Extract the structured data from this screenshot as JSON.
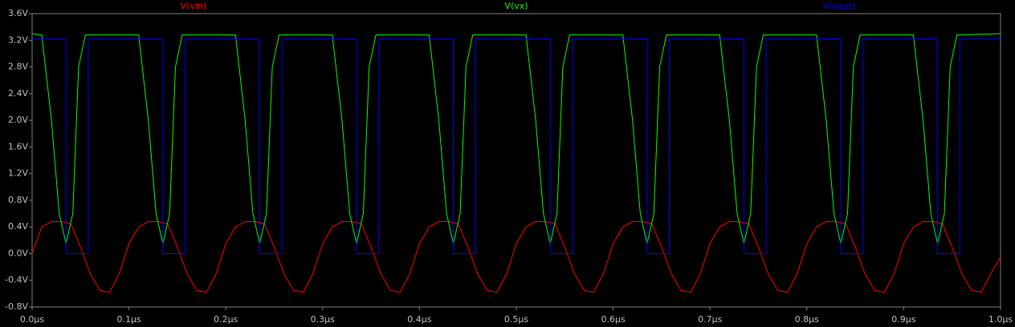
{
  "chart_data": {
    "type": "line",
    "xlim": [
      0,
      1
    ],
    "xticks": [
      {
        "value": 0,
        "label": "0.0µs"
      },
      {
        "value": 0.1,
        "label": "0.1µs"
      },
      {
        "value": 0.2,
        "label": "0.2µs"
      },
      {
        "value": 0.3,
        "label": "0.3µs"
      },
      {
        "value": 0.4,
        "label": "0.4µs"
      },
      {
        "value": 0.5,
        "label": "0.5µs"
      },
      {
        "value": 0.6,
        "label": "0.6µs"
      },
      {
        "value": 0.7,
        "label": "0.7µs"
      },
      {
        "value": 0.8,
        "label": "0.8µs"
      },
      {
        "value": 0.9,
        "label": "0.9µs"
      },
      {
        "value": 1,
        "label": "1.0µs"
      }
    ],
    "ylim": [
      -0.8,
      3.6
    ],
    "yticks": [
      {
        "value": 3.6,
        "label": "3.6V"
      },
      {
        "value": 3.2,
        "label": "3.2V"
      },
      {
        "value": 2.8,
        "label": "2.8V"
      },
      {
        "value": 2.4,
        "label": "2.4V"
      },
      {
        "value": 2.0,
        "label": "2.0V"
      },
      {
        "value": 1.6,
        "label": "1.6V"
      },
      {
        "value": 1.2,
        "label": "1.2V"
      },
      {
        "value": 0.8,
        "label": "0.8V"
      },
      {
        "value": 0.4,
        "label": "0.4V"
      },
      {
        "value": 0,
        "label": "0.0V"
      },
      {
        "value": -0.4,
        "label": "-0.4V"
      },
      {
        "value": -0.8,
        "label": "-0.8V"
      }
    ],
    "series": [
      {
        "name": "V(vin)",
        "color": "#ff0000",
        "x": [
          0,
          0.01,
          0.02,
          0.03,
          0.04,
          0.05,
          0.06,
          0.07,
          0.08,
          0.09,
          0.1,
          0.11,
          0.12,
          0.13,
          0.14,
          0.15,
          0.16,
          0.17,
          0.18,
          0.19,
          0.2,
          0.21,
          0.22,
          0.23,
          0.24,
          0.25,
          0.26,
          0.27,
          0.28,
          0.29,
          0.3,
          0.31,
          0.32,
          0.33,
          0.34,
          0.35,
          0.36,
          0.37,
          0.38,
          0.39,
          0.4,
          0.41,
          0.42,
          0.43,
          0.44,
          0.45,
          0.46,
          0.47,
          0.48,
          0.49,
          0.5,
          0.51,
          0.52,
          0.53,
          0.54,
          0.55,
          0.56,
          0.57,
          0.58,
          0.59,
          0.6,
          0.61,
          0.62,
          0.63,
          0.64,
          0.65,
          0.66,
          0.67,
          0.68,
          0.69,
          0.7,
          0.71,
          0.72,
          0.73,
          0.74,
          0.75,
          0.76,
          0.77,
          0.78,
          0.79,
          0.8,
          0.81,
          0.82,
          0.83,
          0.84,
          0.85,
          0.86,
          0.87,
          0.88,
          0.89,
          0.9,
          0.91,
          0.92,
          0.93,
          0.94,
          0.95,
          0.96,
          0.97,
          0.98,
          0.99,
          1.0
        ],
        "values": [
          0,
          0.4,
          0.48,
          0.48,
          0.45,
          0.1,
          -0.3,
          -0.55,
          -0.58,
          -0.3,
          0.15,
          0.4,
          0.48,
          0.48,
          0.45,
          0.1,
          -0.3,
          -0.55,
          -0.58,
          -0.3,
          0.15,
          0.4,
          0.48,
          0.48,
          0.45,
          0.1,
          -0.3,
          -0.55,
          -0.58,
          -0.3,
          0.15,
          0.4,
          0.48,
          0.48,
          0.45,
          0.1,
          -0.3,
          -0.55,
          -0.58,
          -0.3,
          0.15,
          0.4,
          0.48,
          0.48,
          0.45,
          0.1,
          -0.3,
          -0.55,
          -0.58,
          -0.3,
          0.15,
          0.4,
          0.48,
          0.48,
          0.45,
          0.1,
          -0.3,
          -0.55,
          -0.58,
          -0.3,
          0.15,
          0.4,
          0.48,
          0.48,
          0.45,
          0.1,
          -0.3,
          -0.55,
          -0.58,
          -0.3,
          0.15,
          0.4,
          0.48,
          0.48,
          0.45,
          0.1,
          -0.3,
          -0.55,
          -0.58,
          -0.3,
          0.15,
          0.4,
          0.48,
          0.48,
          0.45,
          0.1,
          -0.3,
          -0.55,
          -0.58,
          -0.3,
          0.15,
          0.4,
          0.48,
          0.48,
          0.45,
          0.1,
          -0.3,
          -0.55,
          -0.58,
          -0.3,
          -0.05
        ]
      },
      {
        "name": "V(vx)",
        "color": "#00ff00",
        "x": [
          0,
          0.01,
          0.02,
          0.028,
          0.035,
          0.042,
          0.048,
          0.055,
          0.11,
          0.12,
          0.128,
          0.135,
          0.142,
          0.148,
          0.155,
          0.21,
          0.22,
          0.228,
          0.235,
          0.242,
          0.248,
          0.255,
          0.31,
          0.32,
          0.328,
          0.335,
          0.342,
          0.348,
          0.355,
          0.41,
          0.42,
          0.428,
          0.435,
          0.442,
          0.448,
          0.455,
          0.51,
          0.52,
          0.528,
          0.535,
          0.542,
          0.548,
          0.555,
          0.61,
          0.62,
          0.628,
          0.635,
          0.642,
          0.648,
          0.655,
          0.71,
          0.72,
          0.728,
          0.735,
          0.742,
          0.748,
          0.755,
          0.81,
          0.82,
          0.828,
          0.835,
          0.842,
          0.848,
          0.855,
          0.91,
          0.92,
          0.928,
          0.935,
          0.942,
          0.948,
          0.955,
          1.0
        ],
        "values": [
          3.3,
          3.28,
          2.0,
          0.6,
          0.15,
          0.6,
          2.8,
          3.28,
          3.28,
          2.0,
          0.6,
          0.15,
          0.6,
          2.8,
          3.28,
          3.28,
          2.0,
          0.6,
          0.15,
          0.6,
          2.8,
          3.28,
          3.28,
          2.0,
          0.6,
          0.15,
          0.6,
          2.8,
          3.28,
          3.28,
          2.0,
          0.6,
          0.15,
          0.6,
          2.8,
          3.28,
          3.28,
          2.0,
          0.6,
          0.15,
          0.6,
          2.8,
          3.28,
          3.28,
          2.0,
          0.6,
          0.15,
          0.6,
          2.8,
          3.28,
          3.28,
          2.0,
          0.6,
          0.15,
          0.6,
          2.8,
          3.28,
          3.28,
          2.0,
          0.6,
          0.15,
          0.6,
          2.8,
          3.28,
          3.28,
          2.0,
          0.6,
          0.15,
          0.6,
          2.8,
          3.28,
          3.3
        ]
      },
      {
        "name": "V(vout)",
        "color": "#0000ff",
        "x": [
          0,
          0.035,
          0.035,
          0.058,
          0.058,
          0.135,
          0.135,
          0.158,
          0.158,
          0.235,
          0.235,
          0.258,
          0.258,
          0.335,
          0.335,
          0.358,
          0.358,
          0.435,
          0.435,
          0.458,
          0.458,
          0.535,
          0.535,
          0.558,
          0.558,
          0.635,
          0.635,
          0.658,
          0.658,
          0.735,
          0.735,
          0.758,
          0.758,
          0.835,
          0.835,
          0.858,
          0.858,
          0.935,
          0.935,
          0.958,
          0.958,
          1.0
        ],
        "values": [
          3.22,
          3.22,
          0,
          0,
          3.22,
          3.22,
          0,
          0,
          3.22,
          3.22,
          0,
          0,
          3.22,
          3.22,
          0,
          0,
          3.22,
          3.22,
          0,
          0,
          3.22,
          3.22,
          0,
          0,
          3.22,
          3.22,
          0,
          0,
          3.22,
          3.22,
          0,
          0,
          3.22,
          3.22,
          0,
          0,
          3.22,
          3.22,
          0,
          0,
          3.22,
          3.22
        ]
      }
    ]
  }
}
